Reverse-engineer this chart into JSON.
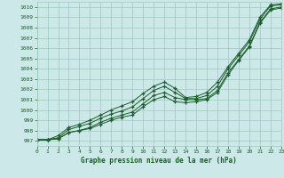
{
  "title": "Graphe pression niveau de la mer (hPa)",
  "xlim": [
    0,
    23
  ],
  "ylim": [
    996.5,
    1010.5
  ],
  "xticks": [
    0,
    1,
    2,
    3,
    4,
    5,
    6,
    7,
    8,
    9,
    10,
    11,
    12,
    13,
    14,
    15,
    16,
    17,
    18,
    19,
    20,
    21,
    22,
    23
  ],
  "yticks": [
    997,
    998,
    999,
    1000,
    1001,
    1002,
    1003,
    1004,
    1005,
    1006,
    1007,
    1008,
    1009,
    1010
  ],
  "background_color": "#cce8e8",
  "grid_color": "#99ccbb",
  "line_color": "#1a5c2a",
  "curves": [
    [
      997.1,
      997.1,
      997.3,
      998.1,
      998.4,
      998.7,
      999.2,
      999.6,
      999.9,
      1000.3,
      1001.1,
      1001.9,
      1002.3,
      1001.7,
      1001.1,
      1001.1,
      1001.4,
      1002.3,
      1004.0,
      1005.3,
      1006.6,
      1008.8,
      1010.1,
      1010.2
    ],
    [
      997.1,
      997.1,
      997.2,
      997.8,
      998.0,
      998.3,
      998.8,
      999.2,
      999.5,
      999.8,
      1000.6,
      1001.4,
      1001.7,
      1001.2,
      1001.0,
      1001.0,
      1001.1,
      1001.9,
      1003.6,
      1004.9,
      1006.2,
      1008.5,
      1009.8,
      1010.0
    ],
    [
      997.1,
      997.1,
      997.5,
      998.3,
      998.6,
      999.0,
      999.5,
      1000.0,
      1000.4,
      1000.8,
      1001.6,
      1002.3,
      1002.7,
      1002.1,
      1001.2,
      1001.3,
      1001.7,
      1002.7,
      1004.2,
      1005.5,
      1006.8,
      1009.0,
      1010.2,
      1010.3
    ],
    [
      997.1,
      997.1,
      997.2,
      997.8,
      998.0,
      998.2,
      998.6,
      999.0,
      999.3,
      999.5,
      1000.3,
      1001.0,
      1001.3,
      1000.8,
      1000.7,
      1000.8,
      1001.0,
      1001.7,
      1003.4,
      1004.8,
      1006.1,
      1008.4,
      1009.7,
      1009.9
    ]
  ]
}
